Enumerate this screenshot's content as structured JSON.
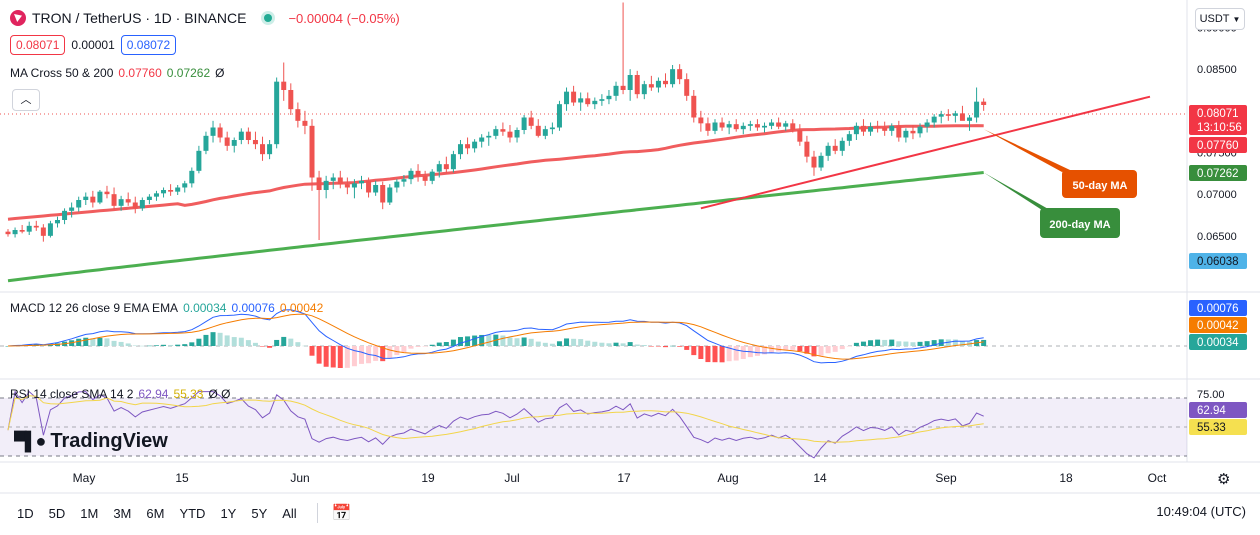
{
  "header": {
    "symbol": "TRON / TetherUS · 1D · BINANCE",
    "change": "−0.00004 (−0.05%)",
    "bid": "0.08071",
    "spread": "0.00001",
    "ask": "0.08072",
    "currency": "USDT"
  },
  "ma_legend": {
    "name": "MA Cross 50 & 200",
    "v50": "0.07760",
    "v200": "0.07262",
    "sym": "Ø"
  },
  "macd_legend": {
    "name": "MACD 12 26 close 9 EMA EMA",
    "hist": "0.00034",
    "macd": "0.00076",
    "signal": "0.00042"
  },
  "rsi_legend": {
    "name": "RSI 14 close SMA 14 2",
    "rsi": "62.94",
    "sma": "55.33",
    "sym": "Ø Ø"
  },
  "brand": "TradingView",
  "ranges": [
    "1D",
    "5D",
    "1M",
    "3M",
    "6M",
    "YTD",
    "1Y",
    "5Y",
    "All"
  ],
  "clock": "10:49:04 (UTC)",
  "colors": {
    "up": "#26a69a",
    "down": "#ef5350",
    "ma50": "#f05d5e",
    "ma200": "#4caf50",
    "macd": "#2962ff",
    "signal": "#f57c00",
    "rsi": "#7e57c2",
    "rsi_sma": "#f2d54a"
  },
  "chart_data": {
    "type": "candlestick",
    "x_labels": [
      "May",
      "15",
      "Jun",
      "19",
      "Jul",
      "17",
      "Aug",
      "14",
      "Sep",
      "18",
      "Oct"
    ],
    "price_axis": {
      "ticks": [
        "0.09000",
        "0.08500",
        "0.08000",
        "0.07500",
        "0.07000",
        "0.06500"
      ],
      "ylim": [
        0.0585,
        0.0933
      ]
    },
    "price_tags": {
      "last": "0.08071",
      "countdown": "13:10:56",
      "ma50": "0.07760",
      "ma200": "0.07262",
      "low_cursor": "0.06038"
    },
    "candles": [
      [
        0.0655,
        0.0658,
        0.0649,
        0.0652
      ],
      [
        0.0652,
        0.066,
        0.0648,
        0.0657
      ],
      [
        0.0657,
        0.0663,
        0.0653,
        0.0655
      ],
      [
        0.0655,
        0.0667,
        0.0651,
        0.0662
      ],
      [
        0.0662,
        0.0668,
        0.0656,
        0.066
      ],
      [
        0.066,
        0.0664,
        0.0643,
        0.065
      ],
      [
        0.065,
        0.0668,
        0.0648,
        0.0665
      ],
      [
        0.0665,
        0.0673,
        0.066,
        0.0669
      ],
      [
        0.0669,
        0.0683,
        0.0664,
        0.068
      ],
      [
        0.068,
        0.069,
        0.0672,
        0.0684
      ],
      [
        0.0684,
        0.0697,
        0.0679,
        0.0693
      ],
      [
        0.0693,
        0.0702,
        0.0687,
        0.0697
      ],
      [
        0.0697,
        0.0704,
        0.0684,
        0.069
      ],
      [
        0.069,
        0.0705,
        0.0688,
        0.0703
      ],
      [
        0.0703,
        0.071,
        0.0695,
        0.07
      ],
      [
        0.07,
        0.0708,
        0.0682,
        0.0686
      ],
      [
        0.0686,
        0.0698,
        0.068,
        0.0694
      ],
      [
        0.0694,
        0.0702,
        0.0686,
        0.069
      ],
      [
        0.069,
        0.0697,
        0.0677,
        0.0683
      ],
      [
        0.0683,
        0.0696,
        0.068,
        0.0693
      ],
      [
        0.0693,
        0.07,
        0.0688,
        0.0697
      ],
      [
        0.0697,
        0.0704,
        0.0692,
        0.0701
      ],
      [
        0.0701,
        0.0708,
        0.0696,
        0.0705
      ],
      [
        0.0705,
        0.0712,
        0.0698,
        0.0703
      ],
      [
        0.0703,
        0.0711,
        0.0699,
        0.0708
      ],
      [
        0.0708,
        0.0716,
        0.0702,
        0.0713
      ],
      [
        0.0713,
        0.0732,
        0.0708,
        0.0728
      ],
      [
        0.0728,
        0.0758,
        0.0725,
        0.0752
      ],
      [
        0.0752,
        0.0775,
        0.0748,
        0.077
      ],
      [
        0.077,
        0.0788,
        0.0762,
        0.078
      ],
      [
        0.078,
        0.0785,
        0.0762,
        0.0768
      ],
      [
        0.0768,
        0.0775,
        0.0752,
        0.0758
      ],
      [
        0.0758,
        0.0768,
        0.075,
        0.0765
      ],
      [
        0.0765,
        0.0779,
        0.076,
        0.0775
      ],
      [
        0.0775,
        0.078,
        0.076,
        0.0765
      ],
      [
        0.0765,
        0.0775,
        0.0754,
        0.076
      ],
      [
        0.076,
        0.0769,
        0.074,
        0.0748
      ],
      [
        0.0748,
        0.0765,
        0.0742,
        0.076
      ],
      [
        0.076,
        0.084,
        0.0755,
        0.0835
      ],
      [
        0.0835,
        0.0858,
        0.0812,
        0.0825
      ],
      [
        0.0825,
        0.0833,
        0.0795,
        0.0802
      ],
      [
        0.0802,
        0.081,
        0.078,
        0.0788
      ],
      [
        0.0788,
        0.08,
        0.0772,
        0.0782
      ],
      [
        0.0782,
        0.079,
        0.0704,
        0.072
      ],
      [
        0.072,
        0.0728,
        0.0645,
        0.0705
      ],
      [
        0.0705,
        0.0722,
        0.0695,
        0.0716
      ],
      [
        0.0716,
        0.0725,
        0.0706,
        0.072
      ],
      [
        0.072,
        0.0728,
        0.0707,
        0.0712
      ],
      [
        0.0712,
        0.072,
        0.07,
        0.0708
      ],
      [
        0.0708,
        0.0718,
        0.0695,
        0.0713
      ],
      [
        0.0713,
        0.0722,
        0.0706,
        0.0716
      ],
      [
        0.0716,
        0.072,
        0.0696,
        0.0702
      ],
      [
        0.0702,
        0.0716,
        0.0698,
        0.0711
      ],
      [
        0.0711,
        0.0715,
        0.0682,
        0.069
      ],
      [
        0.069,
        0.0712,
        0.0687,
        0.0708
      ],
      [
        0.0708,
        0.0718,
        0.0702,
        0.0715
      ],
      [
        0.0715,
        0.0723,
        0.0709,
        0.0718
      ],
      [
        0.0718,
        0.0731,
        0.0712,
        0.0728
      ],
      [
        0.0728,
        0.0736,
        0.0715,
        0.0722
      ],
      [
        0.0722,
        0.0728,
        0.071,
        0.0716
      ],
      [
        0.0716,
        0.073,
        0.0712,
        0.0727
      ],
      [
        0.0727,
        0.074,
        0.072,
        0.0736
      ],
      [
        0.0736,
        0.0745,
        0.0725,
        0.073
      ],
      [
        0.073,
        0.0752,
        0.0726,
        0.0748
      ],
      [
        0.0748,
        0.0765,
        0.0742,
        0.076
      ],
      [
        0.076,
        0.0768,
        0.0748,
        0.0755
      ],
      [
        0.0755,
        0.0766,
        0.075,
        0.0763
      ],
      [
        0.0763,
        0.0772,
        0.0756,
        0.0768
      ],
      [
        0.0768,
        0.0775,
        0.0758,
        0.077
      ],
      [
        0.077,
        0.0782,
        0.0766,
        0.0778
      ],
      [
        0.0778,
        0.0786,
        0.077,
        0.0775
      ],
      [
        0.0775,
        0.0783,
        0.0762,
        0.0768
      ],
      [
        0.0768,
        0.078,
        0.0762,
        0.0777
      ],
      [
        0.0777,
        0.0795,
        0.0772,
        0.0792
      ],
      [
        0.0792,
        0.08,
        0.0778,
        0.0782
      ],
      [
        0.0782,
        0.079,
        0.0768,
        0.077
      ],
      [
        0.077,
        0.0782,
        0.0766,
        0.0778
      ],
      [
        0.0778,
        0.0786,
        0.0772,
        0.078
      ],
      [
        0.078,
        0.0812,
        0.0776,
        0.0808
      ],
      [
        0.0808,
        0.0828,
        0.08,
        0.0823
      ],
      [
        0.0823,
        0.083,
        0.0806,
        0.081
      ],
      [
        0.081,
        0.0822,
        0.08,
        0.0815
      ],
      [
        0.0815,
        0.0822,
        0.0805,
        0.0808
      ],
      [
        0.0808,
        0.0816,
        0.0802,
        0.0812
      ],
      [
        0.0812,
        0.082,
        0.0806,
        0.0814
      ],
      [
        0.0814,
        0.0825,
        0.0808,
        0.0818
      ],
      [
        0.0818,
        0.0835,
        0.0812,
        0.083
      ],
      [
        0.083,
        0.093,
        0.082,
        0.0825
      ],
      [
        0.0825,
        0.085,
        0.0812,
        0.0843
      ],
      [
        0.0843,
        0.0848,
        0.0815,
        0.082
      ],
      [
        0.082,
        0.0836,
        0.0814,
        0.0832
      ],
      [
        0.0832,
        0.0842,
        0.0824,
        0.0828
      ],
      [
        0.0828,
        0.084,
        0.0822,
        0.0836
      ],
      [
        0.0836,
        0.0845,
        0.0828,
        0.0832
      ],
      [
        0.0832,
        0.0855,
        0.0828,
        0.085
      ],
      [
        0.085,
        0.0856,
        0.0832,
        0.0838
      ],
      [
        0.0838,
        0.0845,
        0.0812,
        0.0818
      ],
      [
        0.0818,
        0.0825,
        0.0786,
        0.0792
      ],
      [
        0.0792,
        0.08,
        0.0775,
        0.0785
      ],
      [
        0.0785,
        0.0792,
        0.077,
        0.0776
      ],
      [
        0.0776,
        0.079,
        0.0772,
        0.0786
      ],
      [
        0.0786,
        0.0792,
        0.0776,
        0.078
      ],
      [
        0.078,
        0.0788,
        0.0772,
        0.0784
      ],
      [
        0.0784,
        0.079,
        0.0775,
        0.0778
      ],
      [
        0.0778,
        0.0786,
        0.0772,
        0.0782
      ],
      [
        0.0782,
        0.0788,
        0.0776,
        0.0784
      ],
      [
        0.0784,
        0.079,
        0.0776,
        0.078
      ],
      [
        0.078,
        0.0786,
        0.0774,
        0.0782
      ],
      [
        0.0782,
        0.079,
        0.0778,
        0.0786
      ],
      [
        0.0786,
        0.0792,
        0.0778,
        0.0781
      ],
      [
        0.0781,
        0.0788,
        0.0776,
        0.0785
      ],
      [
        0.0785,
        0.079,
        0.0774,
        0.0777
      ],
      [
        0.0777,
        0.0784,
        0.0758,
        0.0763
      ],
      [
        0.0763,
        0.077,
        0.0738,
        0.0745
      ],
      [
        0.0745,
        0.0752,
        0.0722,
        0.0732
      ],
      [
        0.0732,
        0.075,
        0.0728,
        0.0746
      ],
      [
        0.0746,
        0.0762,
        0.074,
        0.0758
      ],
      [
        0.0758,
        0.0766,
        0.0748,
        0.0752
      ],
      [
        0.0752,
        0.0768,
        0.0746,
        0.0764
      ],
      [
        0.0764,
        0.0776,
        0.0758,
        0.0772
      ],
      [
        0.0772,
        0.0786,
        0.0765,
        0.0782
      ],
      [
        0.0782,
        0.079,
        0.077,
        0.0775
      ],
      [
        0.0775,
        0.0786,
        0.077,
        0.0781
      ],
      [
        0.0781,
        0.0788,
        0.0774,
        0.078
      ],
      [
        0.078,
        0.0787,
        0.077,
        0.0776
      ],
      [
        0.0776,
        0.0785,
        0.077,
        0.0782
      ],
      [
        0.0782,
        0.0788,
        0.0763,
        0.0768
      ],
      [
        0.0768,
        0.0779,
        0.0762,
        0.0776
      ],
      [
        0.0776,
        0.0783,
        0.0766,
        0.0773
      ],
      [
        0.0773,
        0.0785,
        0.0768,
        0.0781
      ],
      [
        0.0781,
        0.079,
        0.0774,
        0.0786
      ],
      [
        0.0786,
        0.0796,
        0.078,
        0.0793
      ],
      [
        0.0793,
        0.08,
        0.0785,
        0.0796
      ],
      [
        0.0796,
        0.0802,
        0.0788,
        0.0794
      ],
      [
        0.0794,
        0.08,
        0.0786,
        0.0797
      ],
      [
        0.0797,
        0.0806,
        0.079,
        0.0788
      ],
      [
        0.0788,
        0.0795,
        0.0776,
        0.0792
      ],
      [
        0.0792,
        0.0828,
        0.0786,
        0.0811
      ],
      [
        0.0811,
        0.0815,
        0.08,
        0.0807
      ]
    ],
    "series": [
      {
        "name": "50-day MA",
        "values_start": 0.067,
        "values_end": 0.0776
      },
      {
        "name": "200-day MA",
        "values_start": 0.0596,
        "values_end": 0.0726
      }
    ],
    "annotations": [
      "50-day MA",
      "200-day MA"
    ],
    "macd_axis_tags": [
      "0.00076",
      "0.00042",
      "0.00034"
    ],
    "rsi_axis": {
      "ticks": [
        "75.00"
      ],
      "tags": [
        "62.94",
        "55.33"
      ]
    }
  }
}
